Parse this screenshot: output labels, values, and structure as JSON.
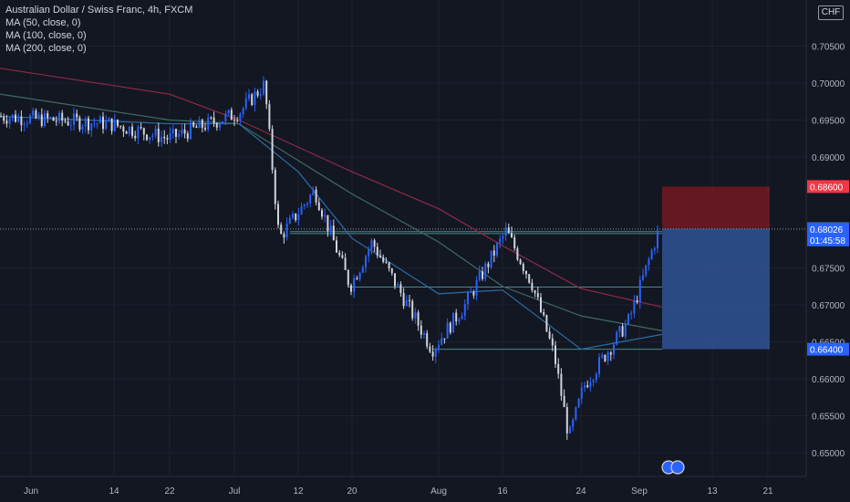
{
  "header": {
    "title": "Australian Dollar / Swiss Franc, 4h, FXCM",
    "indicators": [
      "MA (50, close, 0)",
      "MA (100, close, 0)",
      "MA (200, close, 0)"
    ],
    "currency": "CHF"
  },
  "colors": {
    "background": "#131722",
    "candle_up": "#2962ff",
    "candle_down": "#d1d4dc",
    "ma50": "#2a6ea8",
    "ma100": "#3f6b5e",
    "ma200": "#8e2b45",
    "stop_zone": "#801922",
    "target_zone": "#2f4f8f",
    "support_lines": "#4a8a8c"
  },
  "chart_data": {
    "type": "candlestick",
    "instrument": "AUDCHF",
    "timeframe": "4h",
    "xaxis_ticks": [
      "Jun",
      "14",
      "22",
      "Jul",
      "12",
      "20",
      "Aug",
      "16",
      "24",
      "Sep",
      "13",
      "21"
    ],
    "yaxis_ticks": [
      "0.70500",
      "0.70000",
      "0.69500",
      "0.69000",
      "0.67500",
      "0.67000",
      "0.66500",
      "0.66000",
      "0.65500",
      "0.65000"
    ],
    "ylim": [
      0.6485,
      0.7122
    ],
    "price_tracks": [
      {
        "x": "Jun",
        "y": 0.6955
      },
      {
        "x": "14",
        "y": 0.6945
      },
      {
        "x": "22",
        "y": 0.6925
      },
      {
        "x": "Jul",
        "y": 0.696
      },
      {
        "x": "Jul",
        "y": 0.6998
      },
      {
        "x": "12",
        "y": 0.679
      },
      {
        "x": "12",
        "y": 0.6855
      },
      {
        "x": "20",
        "y": 0.6725
      },
      {
        "x": "20",
        "y": 0.6785
      },
      {
        "x": "Aug",
        "y": 0.664
      },
      {
        "x": "Aug",
        "y": 0.67
      },
      {
        "x": "16",
        "y": 0.68
      },
      {
        "x": "16",
        "y": 0.673
      },
      {
        "x": "24",
        "y": 0.663
      },
      {
        "x": "24",
        "y": 0.652
      },
      {
        "x": "24",
        "y": 0.659
      },
      {
        "x": "Sep",
        "y": 0.668
      },
      {
        "x": "Sep",
        "y": 0.68
      }
    ],
    "moving_averages": [
      {
        "name": "MA (50, close, 0)",
        "points": [
          {
            "x": "Jun",
            "y": 0.6955
          },
          {
            "x": "22",
            "y": 0.6945
          },
          {
            "x": "Jul",
            "y": 0.6945
          },
          {
            "x": "12",
            "y": 0.688
          },
          {
            "x": "20",
            "y": 0.679
          },
          {
            "x": "Aug",
            "y": 0.6715
          },
          {
            "x": "16",
            "y": 0.672
          },
          {
            "x": "24",
            "y": 0.664
          },
          {
            "x": "Sep",
            "y": 0.666
          }
        ]
      },
      {
        "name": "MA (100, close, 0)",
        "points": [
          {
            "x": "Jun",
            "y": 0.6985
          },
          {
            "x": "22",
            "y": 0.695
          },
          {
            "x": "Jul",
            "y": 0.6945
          },
          {
            "x": "20",
            "y": 0.685
          },
          {
            "x": "Aug",
            "y": 0.6785
          },
          {
            "x": "16",
            "y": 0.6725
          },
          {
            "x": "24",
            "y": 0.6685
          },
          {
            "x": "Sep",
            "y": 0.6665
          }
        ]
      },
      {
        "name": "MA (200, close, 0)",
        "points": [
          {
            "x": "Jun",
            "y": 0.702
          },
          {
            "x": "22",
            "y": 0.6985
          },
          {
            "x": "Jul",
            "y": 0.695
          },
          {
            "x": "20",
            "y": 0.688
          },
          {
            "x": "Aug",
            "y": 0.683
          },
          {
            "x": "16",
            "y": 0.678
          },
          {
            "x": "24",
            "y": 0.6722
          },
          {
            "x": "Sep",
            "y": 0.6697
          }
        ]
      }
    ],
    "horizontal_levels": [
      0.6799,
      0.67965,
      0.6724,
      0.664
    ],
    "position": {
      "direction": "short",
      "stop": 0.686,
      "entry": 0.6803,
      "target": 0.664
    },
    "last_price": {
      "value": "0.68026",
      "countdown": "01:45:58"
    },
    "price_labels": [
      {
        "value": "0.68600",
        "kind": "stop"
      },
      {
        "value": "0.68030",
        "kind": "entry"
      },
      {
        "value": "0.66400",
        "kind": "target"
      }
    ]
  }
}
